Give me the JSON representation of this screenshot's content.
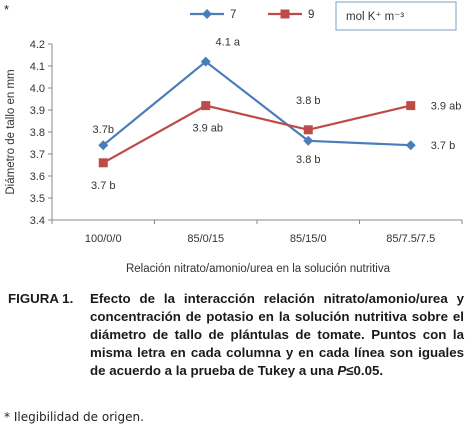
{
  "corner_mark": "*",
  "chart_data": {
    "type": "line",
    "categories": [
      "100/0/0",
      "85/0/15",
      "85/15/0",
      "85/7.5/7.5"
    ],
    "series": [
      {
        "name": "7",
        "color": "#4a7ebb",
        "marker": "diamond",
        "values": [
          3.74,
          4.12,
          3.76,
          3.74
        ],
        "labels": [
          "3.7b",
          "4.1 a",
          "3.8 b",
          "3.7 b"
        ]
      },
      {
        "name": "9",
        "color": "#be4b48",
        "marker": "square",
        "values": [
          3.66,
          3.92,
          3.81,
          3.92
        ],
        "labels": [
          "3.7 b",
          "3.9 ab",
          "3.8 b",
          "3.9 ab"
        ]
      }
    ],
    "ylim": [
      3.4,
      4.2
    ],
    "yticks": [
      "3.4",
      "3.5",
      "3.6",
      "3.7",
      "3.8",
      "3.9",
      "4.0",
      "4.1",
      "4.2"
    ],
    "ylabel": "Diámetro de tallo en mm",
    "xlabel": "Relación nitrato/amonio/urea en la solución nutritiva",
    "legend_units": "mol  K⁺ m⁻³",
    "legend_position": "top-right",
    "grid": false
  },
  "caption": {
    "lead": "FIGURA 1.",
    "text_pre": "Efecto de la interacción  relación nitrato/amonio/urea y concentración de potasio en la solución nutritiva sobre el diámetro de tallo de plántulas de tomate. Puntos con la misma letra en cada columna y en cada línea son iguales de acuerdo a la prueba de Tukey a una ",
    "p_symbol": "P",
    "text_post": "≤0.05."
  },
  "footnote": "* Ilegibilidad de origen."
}
